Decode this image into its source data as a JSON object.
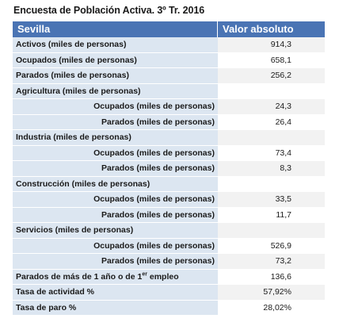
{
  "title": "Encuesta de Población Activa. 3º Tr. 2016",
  "header": {
    "col1": "Sevilla",
    "col2": "Valor absoluto"
  },
  "rows": [
    {
      "label": "Activos (miles de personas)",
      "value": "914,3",
      "indent": false,
      "shade": true
    },
    {
      "label": "Ocupados (miles de personas)",
      "value": "658,1",
      "indent": false,
      "shade": false
    },
    {
      "label": "Parados (miles de personas)",
      "value": "256,2",
      "indent": false,
      "shade": true
    },
    {
      "label": "Agricultura (miles de personas)",
      "value": "",
      "indent": false,
      "shade": false
    },
    {
      "label": "Ocupados (miles de personas)",
      "value": "24,3",
      "indent": true,
      "shade": true
    },
    {
      "label": "Parados (miles de personas)",
      "value": "26,4",
      "indent": true,
      "shade": false
    },
    {
      "label": "Industria (miles de personas)",
      "value": "",
      "indent": false,
      "shade": true
    },
    {
      "label": "Ocupados (miles de personas)",
      "value": "73,4",
      "indent": true,
      "shade": false
    },
    {
      "label": "Parados (miles de personas)",
      "value": "8,3",
      "indent": true,
      "shade": true
    },
    {
      "label": "Construcción (miles de personas)",
      "value": "",
      "indent": false,
      "shade": false
    },
    {
      "label": "Ocupados (miles de personas)",
      "value": "33,5",
      "indent": true,
      "shade": true
    },
    {
      "label": "Parados (miles de personas)",
      "value": "11,7",
      "indent": true,
      "shade": false
    },
    {
      "label": "Servicios (miles de personas)",
      "value": "",
      "indent": false,
      "shade": true
    },
    {
      "label": "Ocupados (miles de personas)",
      "value": "526,9",
      "indent": true,
      "shade": false
    },
    {
      "label": "Parados (miles de personas)",
      "value": "73,2",
      "indent": true,
      "shade": true
    },
    {
      "label": "Parados de más de 1 año o de 1",
      "label_sup": "er",
      "label_after": " empleo",
      "value": "136,6",
      "indent": false,
      "shade": false
    },
    {
      "label": "Tasa de actividad %",
      "value": "57,92%",
      "indent": false,
      "shade": true
    },
    {
      "label": "Tasa de paro %",
      "value": "28,02%",
      "indent": false,
      "shade": false
    }
  ]
}
